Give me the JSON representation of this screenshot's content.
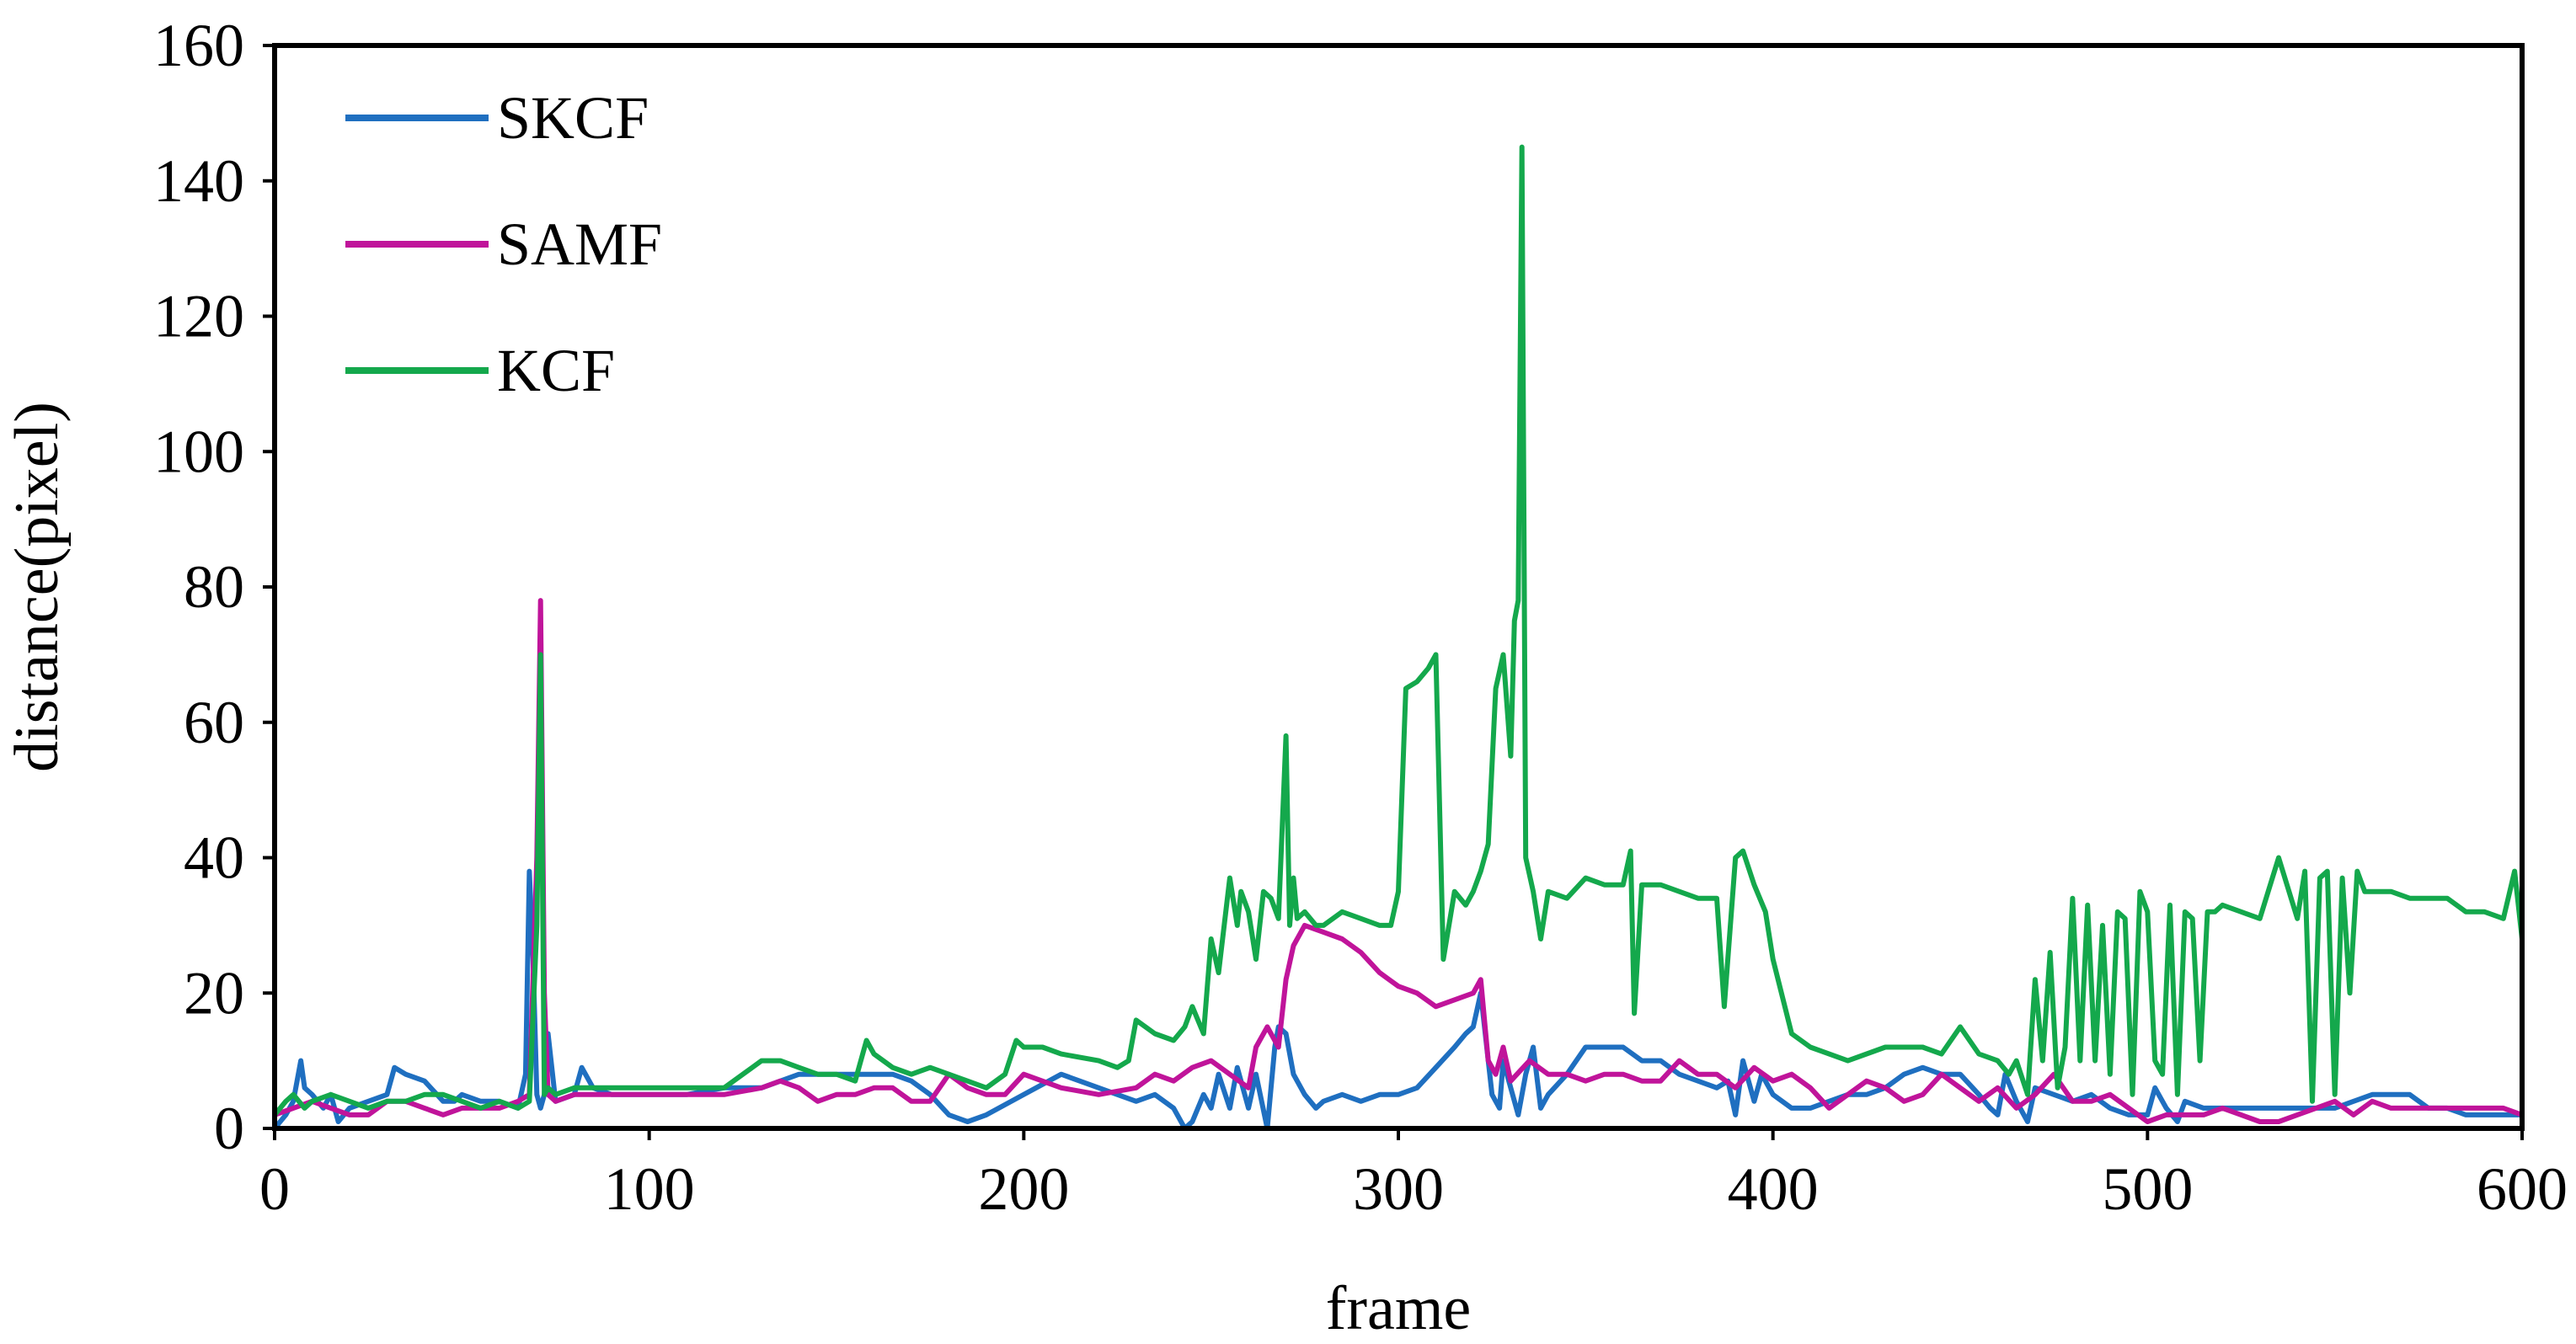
{
  "chart_data": {
    "type": "line",
    "xlabel": "frame",
    "ylabel": "distance(pixel)",
    "xlim": [
      0,
      600
    ],
    "ylim": [
      0,
      160
    ],
    "xticks": [
      0,
      100,
      200,
      300,
      400,
      500,
      600
    ],
    "yticks": [
      0,
      20,
      40,
      60,
      80,
      100,
      120,
      140,
      160
    ],
    "grid": false,
    "legend_position": "top-left",
    "series": [
      {
        "name": "SKCF",
        "color": "#1f6fc0",
        "x": [
          0,
          3,
          5,
          7,
          8,
          10,
          13,
          15,
          17,
          20,
          25,
          30,
          32,
          35,
          40,
          45,
          48,
          50,
          55,
          60,
          65,
          67,
          68,
          69,
          70,
          71,
          72,
          73,
          75,
          80,
          82,
          85,
          90,
          100,
          110,
          120,
          130,
          140,
          150,
          160,
          165,
          170,
          175,
          180,
          185,
          190,
          200,
          210,
          220,
          230,
          235,
          240,
          243,
          245,
          248,
          250,
          252,
          255,
          257,
          260,
          262,
          265,
          267,
          268,
          270,
          272,
          275,
          278,
          280,
          285,
          290,
          295,
          300,
          305,
          310,
          315,
          318,
          320,
          322,
          325,
          327,
          328,
          330,
          332,
          334,
          336,
          338,
          340,
          345,
          350,
          355,
          360,
          365,
          370,
          375,
          380,
          385,
          388,
          390,
          392,
          395,
          397,
          400,
          405,
          410,
          415,
          420,
          425,
          430,
          435,
          440,
          445,
          450,
          455,
          458,
          460,
          462,
          465,
          468,
          470,
          475,
          480,
          485,
          490,
          495,
          500,
          502,
          505,
          508,
          510,
          515,
          520,
          525,
          530,
          535,
          540,
          545,
          550,
          555,
          560,
          565,
          570,
          575,
          580,
          585,
          590,
          595,
          600
        ],
        "y": [
          0,
          2,
          4,
          10,
          6,
          5,
          3,
          5,
          1,
          3,
          4,
          5,
          9,
          8,
          7,
          4,
          4,
          5,
          4,
          4,
          3,
          8,
          38,
          25,
          5,
          3,
          5,
          14,
          4,
          5,
          9,
          6,
          5,
          5,
          5,
          6,
          6,
          8,
          8,
          8,
          8,
          7,
          5,
          2,
          1,
          2,
          5,
          8,
          6,
          4,
          5,
          3,
          0,
          1,
          5,
          3,
          8,
          3,
          9,
          3,
          8,
          0,
          12,
          15,
          14,
          8,
          5,
          3,
          4,
          5,
          4,
          5,
          5,
          6,
          9,
          12,
          14,
          15,
          20,
          5,
          3,
          10,
          6,
          2,
          8,
          12,
          3,
          5,
          8,
          12,
          12,
          12,
          10,
          10,
          8,
          7,
          6,
          7,
          2,
          10,
          4,
          8,
          5,
          3,
          3,
          4,
          5,
          5,
          6,
          8,
          9,
          8,
          8,
          5,
          3,
          2,
          8,
          4,
          1,
          6,
          5,
          4,
          5,
          3,
          2,
          2,
          6,
          3,
          1,
          4,
          3,
          3,
          3,
          3,
          3,
          3,
          3,
          3,
          4,
          5,
          5,
          5,
          3,
          3,
          2,
          2,
          2,
          2
        ]
      },
      {
        "name": "SAMF",
        "color": "#c0149a",
        "x": [
          0,
          5,
          10,
          15,
          20,
          25,
          30,
          35,
          40,
          45,
          50,
          55,
          60,
          65,
          68,
          70,
          71,
          72,
          73,
          75,
          80,
          85,
          90,
          100,
          110,
          120,
          130,
          135,
          140,
          145,
          150,
          155,
          160,
          165,
          170,
          175,
          180,
          185,
          190,
          195,
          200,
          210,
          220,
          230,
          235,
          240,
          245,
          250,
          255,
          260,
          262,
          265,
          268,
          270,
          272,
          275,
          280,
          285,
          290,
          295,
          300,
          305,
          310,
          315,
          320,
          322,
          324,
          326,
          328,
          330,
          335,
          340,
          345,
          350,
          355,
          360,
          365,
          370,
          375,
          380,
          385,
          390,
          395,
          400,
          405,
          410,
          415,
          420,
          425,
          430,
          435,
          440,
          445,
          450,
          455,
          460,
          465,
          470,
          475,
          480,
          485,
          490,
          495,
          500,
          505,
          510,
          515,
          520,
          525,
          530,
          535,
          540,
          545,
          550,
          555,
          560,
          565,
          570,
          575,
          580,
          585,
          590,
          595,
          600
        ],
        "y": [
          2,
          3,
          4,
          3,
          2,
          2,
          4,
          4,
          3,
          2,
          3,
          3,
          3,
          4,
          5,
          40,
          78,
          20,
          5,
          4,
          5,
          5,
          5,
          5,
          5,
          5,
          6,
          7,
          6,
          4,
          5,
          5,
          6,
          6,
          4,
          4,
          8,
          6,
          5,
          5,
          8,
          6,
          5,
          6,
          8,
          7,
          9,
          10,
          8,
          6,
          12,
          15,
          12,
          22,
          27,
          30,
          29,
          28,
          26,
          23,
          21,
          20,
          18,
          19,
          20,
          22,
          10,
          8,
          12,
          7,
          10,
          8,
          8,
          7,
          8,
          8,
          7,
          7,
          10,
          8,
          8,
          6,
          9,
          7,
          8,
          6,
          3,
          5,
          7,
          6,
          4,
          5,
          8,
          6,
          4,
          6,
          3,
          5,
          8,
          4,
          4,
          5,
          3,
          1,
          2,
          2,
          2,
          3,
          2,
          1,
          1,
          2,
          3,
          4,
          2,
          4,
          3,
          3,
          3,
          3,
          3,
          3,
          3,
          2
        ]
      },
      {
        "name": "KCF",
        "color": "#14a84c",
        "x": [
          0,
          3,
          5,
          8,
          10,
          15,
          20,
          25,
          30,
          35,
          40,
          45,
          50,
          55,
          60,
          65,
          68,
          70,
          71,
          72,
          73,
          75,
          80,
          85,
          90,
          100,
          110,
          120,
          130,
          135,
          140,
          145,
          150,
          155,
          158,
          160,
          165,
          170,
          175,
          180,
          185,
          190,
          195,
          198,
          200,
          205,
          210,
          220,
          225,
          228,
          230,
          235,
          240,
          243,
          245,
          248,
          250,
          252,
          255,
          257,
          258,
          260,
          262,
          264,
          266,
          268,
          270,
          271,
          272,
          273,
          275,
          278,
          280,
          285,
          290,
          295,
          298,
          300,
          302,
          305,
          308,
          310,
          312,
          315,
          318,
          320,
          322,
          324,
          326,
          328,
          330,
          331,
          332,
          333,
          334,
          336,
          338,
          340,
          345,
          350,
          355,
          360,
          362,
          363,
          365,
          370,
          375,
          380,
          385,
          387,
          390,
          392,
          395,
          398,
          400,
          405,
          410,
          420,
          430,
          440,
          445,
          450,
          455,
          460,
          463,
          465,
          468,
          470,
          472,
          474,
          476,
          478,
          480,
          482,
          484,
          486,
          488,
          490,
          492,
          494,
          496,
          498,
          500,
          502,
          504,
          506,
          508,
          510,
          512,
          514,
          516,
          518,
          520,
          525,
          530,
          535,
          540,
          542,
          544,
          546,
          548,
          550,
          552,
          554,
          556,
          558,
          560,
          565,
          570,
          575,
          580,
          585,
          590,
          595,
          598,
          600
        ],
        "y": [
          2,
          4,
          5,
          3,
          4,
          5,
          4,
          3,
          4,
          4,
          5,
          5,
          4,
          3,
          4,
          3,
          4,
          30,
          70,
          5,
          6,
          5,
          6,
          6,
          6,
          6,
          6,
          6,
          10,
          10,
          9,
          8,
          8,
          7,
          13,
          11,
          9,
          8,
          9,
          8,
          7,
          6,
          8,
          13,
          12,
          12,
          11,
          10,
          9,
          10,
          16,
          14,
          13,
          15,
          18,
          14,
          28,
          23,
          37,
          30,
          35,
          32,
          25,
          35,
          34,
          31,
          58,
          30,
          37,
          31,
          32,
          30,
          30,
          32,
          31,
          30,
          30,
          35,
          65,
          66,
          68,
          70,
          25,
          35,
          33,
          35,
          38,
          42,
          65,
          70,
          55,
          75,
          78,
          145,
          40,
          35,
          28,
          35,
          34,
          37,
          36,
          36,
          41,
          17,
          36,
          36,
          35,
          34,
          34,
          18,
          40,
          41,
          36,
          32,
          25,
          14,
          12,
          10,
          12,
          12,
          11,
          15,
          11,
          10,
          8,
          10,
          5,
          22,
          10,
          26,
          6,
          12,
          34,
          10,
          33,
          10,
          30,
          8,
          32,
          31,
          5,
          35,
          32,
          10,
          8,
          33,
          5,
          32,
          31,
          10,
          32,
          32,
          33,
          32,
          31,
          40,
          31,
          38,
          4,
          37,
          38,
          5,
          37,
          20,
          38,
          35,
          35,
          35,
          34,
          34,
          34,
          32,
          32,
          31,
          38,
          28
        ]
      }
    ]
  }
}
